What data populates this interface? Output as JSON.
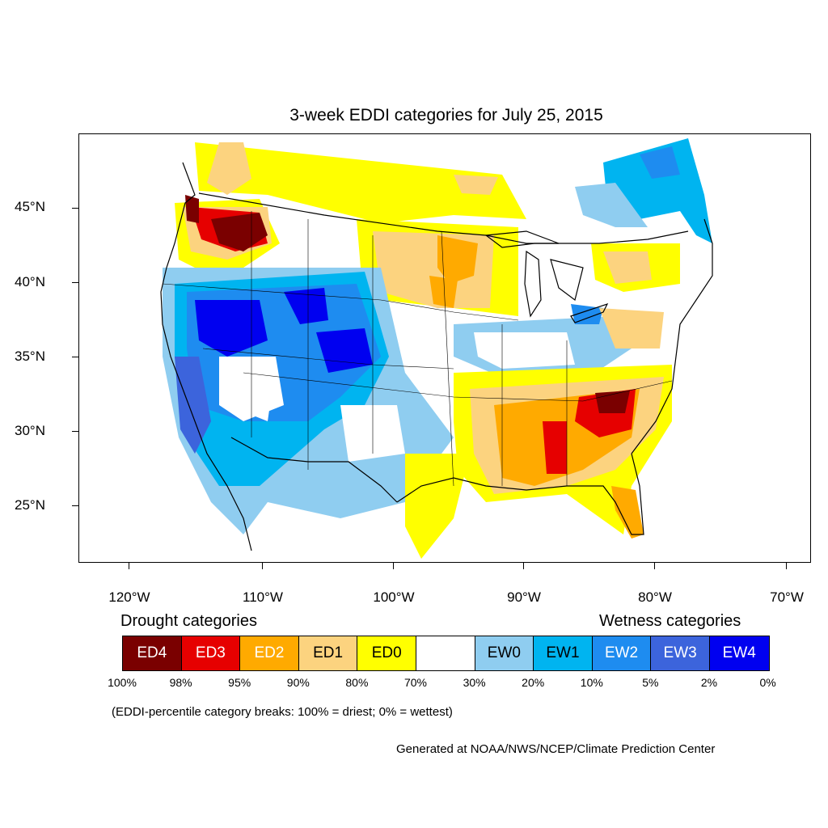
{
  "title": "3-week EDDI categories for July 25, 2015",
  "lat_labels": [
    "45°N",
    "40°N",
    "35°N",
    "30°N",
    "25°N"
  ],
  "lon_labels": [
    "120°W",
    "110°W",
    "100°W",
    "90°W",
    "80°W",
    "70°W"
  ],
  "legend": {
    "drought_heading": "Drought categories",
    "wetness_heading": "Wetness categories",
    "categories": [
      {
        "label": "ED4",
        "color": "#7a0000",
        "text_color": "#ffffff"
      },
      {
        "label": "ED3",
        "color": "#e60000",
        "text_color": "#ffffff"
      },
      {
        "label": "ED2",
        "color": "#ffaa00",
        "text_color": "#ffffff"
      },
      {
        "label": "ED1",
        "color": "#fcd37f",
        "text_color": "#000000"
      },
      {
        "label": "ED0",
        "color": "#ffff00",
        "text_color": "#000000"
      },
      {
        "label": "",
        "color": "#ffffff",
        "text_color": "#000000"
      },
      {
        "label": "EW0",
        "color": "#8fcdf0",
        "text_color": "#000000"
      },
      {
        "label": "EW1",
        "color": "#00b4f0",
        "text_color": "#000000"
      },
      {
        "label": "EW2",
        "color": "#1e8cf0",
        "text_color": "#ffffff"
      },
      {
        "label": "EW3",
        "color": "#3c64dc",
        "text_color": "#ffffff"
      },
      {
        "label": "EW4",
        "color": "#0000f0",
        "text_color": "#ffffff"
      }
    ],
    "breaks": [
      "100%",
      "98%",
      "95%",
      "90%",
      "80%",
      "70%",
      "30%",
      "20%",
      "10%",
      "5%",
      "2%",
      "0%"
    ]
  },
  "note": "(EDDI-percentile category breaks: 100% = driest; 0% = wettest)",
  "credit": "Generated at NOAA/NWS/NCEP/Climate Prediction Center"
}
